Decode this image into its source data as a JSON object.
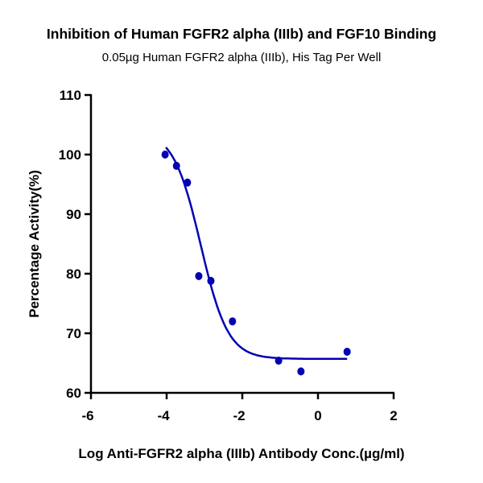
{
  "chart_data": {
    "type": "scatter",
    "title": "Inhibition of Human FGFR2 alpha (IIIb) and  FGF10 Binding",
    "subtitle": "0.05µg Human FGFR2 alpha (IIIb), His Tag Per Well",
    "xlabel": "Log Anti-FGFR2 alpha (IIIb) Antibody Conc.(µg/ml)",
    "ylabel": "Percentage Activity(%)",
    "xlim": [
      -6,
      2
    ],
    "ylim": [
      60,
      110
    ],
    "xticks": [
      -6,
      -4,
      -2,
      0,
      2
    ],
    "yticks": [
      60,
      70,
      80,
      90,
      100,
      110
    ],
    "grid": false,
    "color": "#0000b4",
    "points": {
      "x": [
        -4.04,
        -3.74,
        -3.45,
        -3.15,
        -2.83,
        -2.26,
        -1.04,
        -0.45,
        0.77
      ],
      "y": [
        100.0,
        98.1,
        95.3,
        79.6,
        78.8,
        72.0,
        65.4,
        63.6,
        66.9
      ]
    },
    "fit": {
      "model": "four-parameter logistic",
      "top": 104,
      "bottom": 65.7,
      "logIC50": -3.1,
      "hill": 1.2,
      "x_range": [
        -4.02,
        0.77
      ]
    }
  }
}
